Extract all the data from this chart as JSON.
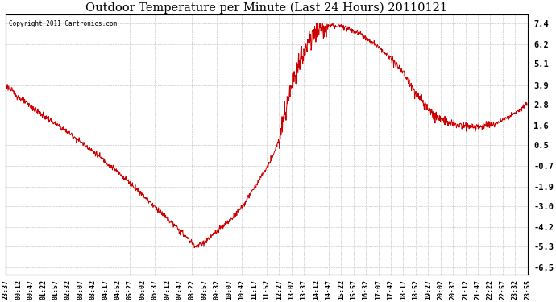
{
  "title": "Outdoor Temperature per Minute (Last 24 Hours) 20110121",
  "copyright": "Copyright 2011 Cartronics.com",
  "line_color": "#cc0000",
  "bg_color": "#ffffff",
  "plot_bg_color": "#ffffff",
  "grid_color": "#aaaaaa",
  "yticks": [
    7.4,
    6.2,
    5.1,
    3.9,
    2.8,
    1.6,
    0.5,
    -0.7,
    -1.9,
    -3.0,
    -4.2,
    -5.3,
    -6.5
  ],
  "ylim": [
    -6.9,
    7.9
  ],
  "xtick_labels": [
    "23:37",
    "00:12",
    "00:47",
    "01:22",
    "01:57",
    "02:32",
    "03:07",
    "03:42",
    "04:17",
    "04:52",
    "05:27",
    "06:02",
    "06:37",
    "07:12",
    "07:47",
    "08:22",
    "08:57",
    "09:32",
    "10:07",
    "10:42",
    "11:17",
    "11:52",
    "12:27",
    "13:02",
    "13:37",
    "14:12",
    "14:47",
    "15:22",
    "15:57",
    "16:32",
    "17:07",
    "17:42",
    "18:17",
    "18:52",
    "19:27",
    "20:02",
    "20:37",
    "21:12",
    "21:47",
    "22:22",
    "22:57",
    "23:32",
    "23:55"
  ],
  "control_x": [
    0,
    35,
    100,
    165,
    230,
    295,
    360,
    420,
    470,
    510,
    525,
    545,
    580,
    620,
    660,
    700,
    730,
    755,
    770,
    790,
    810,
    830,
    855,
    900,
    940,
    980,
    1020,
    1060,
    1100,
    1140,
    1180,
    1220,
    1260,
    1300,
    1350,
    1400,
    1440
  ],
  "control_y": [
    3.9,
    3.2,
    2.2,
    1.3,
    0.3,
    -0.8,
    -2.0,
    -3.2,
    -4.2,
    -5.0,
    -5.3,
    -5.1,
    -4.5,
    -3.8,
    -2.8,
    -1.5,
    -0.5,
    0.8,
    2.2,
    3.8,
    5.2,
    6.2,
    7.0,
    7.3,
    7.2,
    6.8,
    6.2,
    5.5,
    4.5,
    3.2,
    2.2,
    1.8,
    1.6,
    1.5,
    1.7,
    2.2,
    2.8
  ]
}
